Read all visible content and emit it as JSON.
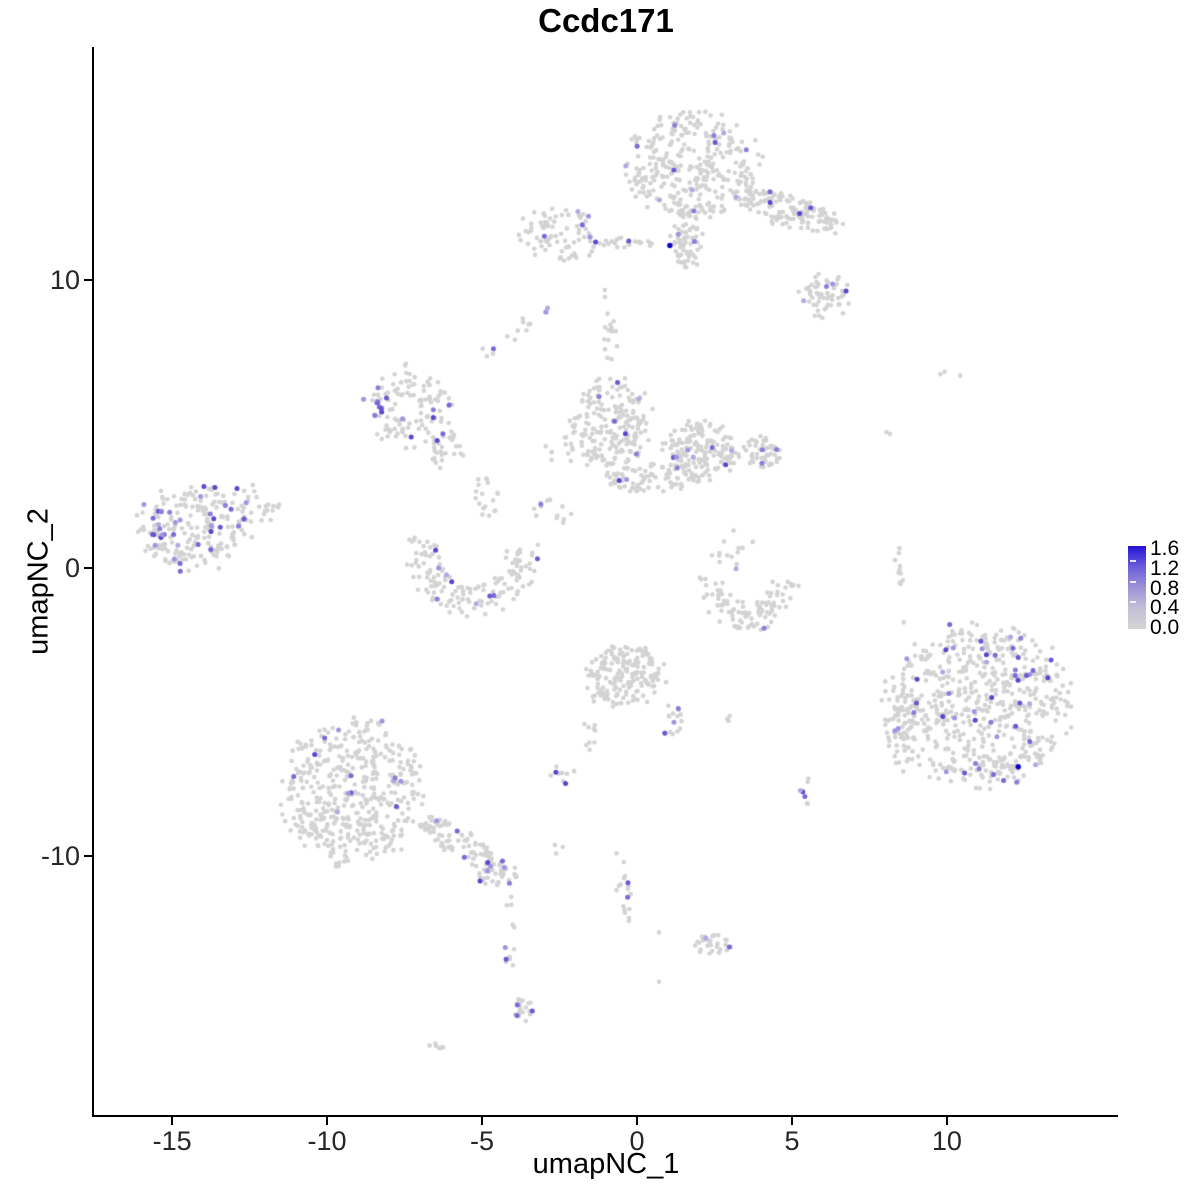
{
  "title": "Ccdc171",
  "axes": {
    "x": {
      "label": "umapNC_1",
      "ticks": [
        -15,
        -10,
        -5,
        0,
        5,
        10
      ],
      "range": [
        -17.52,
        15.52
      ]
    },
    "y": {
      "label": "umapNC_2",
      "ticks": [
        -10,
        0,
        10
      ],
      "range": [
        -19.06,
        18.06
      ]
    }
  },
  "legend": {
    "labels": [
      "1.6",
      "1.2",
      "0.8",
      "0.4",
      "0.0"
    ],
    "values": [
      1.6,
      1.2,
      0.8,
      0.4,
      0.0
    ],
    "max_value": 1.6,
    "tick_values": [
      1.2,
      0.8,
      0.4
    ],
    "gradient_stops": [
      "#2414d6",
      "#6c5cda",
      "#9c94d6",
      "#c4bfd6",
      "#d3d3d3"
    ]
  },
  "colors": {
    "base_point": "#d3d3d3",
    "expressing_palette": [
      "#a294e0",
      "#8f7cda",
      "#7d66d6",
      "#6f55d3",
      "#b2a8e4",
      "#5d44cf"
    ],
    "max_point": "#0c04c6",
    "axis": "#000000",
    "tick_text": "#262626"
  },
  "chart_data": {
    "type": "scatter",
    "title": "Ccdc171",
    "xlabel": "umapNC_1",
    "ylabel": "umapNC_2",
    "xlim": [
      -17.52,
      15.52
    ],
    "ylim": [
      -19.06,
      18.06
    ],
    "legend_position": "right",
    "grid": false,
    "point_radius_px": {
      "base": 2.3,
      "expressing": 2.5,
      "max": 2.7
    },
    "seed": 7,
    "clusters": [
      {
        "shape": "blob",
        "x": 1.87,
        "y": 14.0,
        "hw": 2.1,
        "hh": 1.8,
        "rot": 0,
        "n": 330,
        "purple": 12
      },
      {
        "shape": "blob",
        "x": 1.6,
        "y": 11.4,
        "hw": 0.5,
        "hh": 1.1,
        "rot": 0,
        "n": 70,
        "purple": 2
      },
      {
        "shape": "blob",
        "x": 4.9,
        "y": 12.4,
        "hw": 1.8,
        "hh": 0.55,
        "rot": -18,
        "n": 140,
        "purple": 4
      },
      {
        "shape": "blob",
        "x": 6.1,
        "y": 9.4,
        "hw": 0.85,
        "hh": 0.75,
        "rot": 0,
        "n": 55,
        "purple": 4
      },
      {
        "shape": "blob",
        "x": -0.3,
        "y": 11.3,
        "hw": 1.1,
        "hh": 0.2,
        "rot": 0,
        "n": 22,
        "purple": 1
      },
      {
        "shape": "blob",
        "x": -2.5,
        "y": 11.6,
        "hw": 1.3,
        "hh": 0.95,
        "rot": 0,
        "n": 85,
        "purple": 6
      },
      {
        "shape": "blob",
        "x": -2.95,
        "y": 9.0,
        "hw": 0.18,
        "hh": 0.12,
        "rot": 0,
        "n": 3,
        "purple": 2
      },
      {
        "shape": "blob",
        "x": -4.85,
        "y": 7.5,
        "hw": 0.25,
        "hh": 0.2,
        "rot": 0,
        "n": 4,
        "purple": 1
      },
      {
        "shape": "blob",
        "x": -3.9,
        "y": 8.4,
        "hw": 0.5,
        "hh": 0.5,
        "rot": 0,
        "n": 8,
        "purple": 0
      },
      {
        "shape": "arc",
        "x": -7.4,
        "y": 5.6,
        "r": 0.95,
        "t": 0.55,
        "a0": 0,
        "a1": 360,
        "n": 115,
        "purple": 8
      },
      {
        "shape": "blob",
        "x": -8.2,
        "y": 5.8,
        "hw": 0.25,
        "hh": 0.7,
        "rot": 0,
        "n": 10,
        "purple": 8
      },
      {
        "shape": "blob",
        "x": -6.1,
        "y": 3.9,
        "hw": 0.6,
        "hh": 0.8,
        "rot": 0,
        "n": 30,
        "purple": 2
      },
      {
        "shape": "blob",
        "x": -4.9,
        "y": 2.5,
        "hw": 0.5,
        "hh": 0.7,
        "rot": 0,
        "n": 18,
        "purple": 0
      },
      {
        "shape": "blob",
        "x": -0.8,
        "y": 5.0,
        "hw": 1.25,
        "hh": 1.6,
        "rot": 0,
        "n": 200,
        "purple": 6
      },
      {
        "shape": "blob",
        "x": 2.1,
        "y": 4.1,
        "hw": 1.2,
        "hh": 1.05,
        "rot": 0,
        "n": 170,
        "purple": 8
      },
      {
        "shape": "blob",
        "x": 0.4,
        "y": 3.1,
        "hw": 1.5,
        "hh": 0.5,
        "rot": 0,
        "n": 70,
        "purple": 2
      },
      {
        "shape": "blob",
        "x": 4.0,
        "y": 4.0,
        "hw": 0.7,
        "hh": 0.6,
        "rot": 0,
        "n": 55,
        "purple": 3
      },
      {
        "shape": "arc",
        "x": -5.3,
        "y": 0.45,
        "r": 1.6,
        "t": 0.55,
        "a0": 160,
        "a1": 370,
        "n": 150,
        "purple": 9
      },
      {
        "shape": "blob",
        "x": -14.3,
        "y": 1.4,
        "hw": 1.8,
        "hh": 1.45,
        "rot": 0,
        "n": 210,
        "purple": 24
      },
      {
        "shape": "blob",
        "x": -15.2,
        "y": 1.15,
        "hw": 0.5,
        "hh": 0.8,
        "rot": 0,
        "n": 12,
        "purple": 10
      },
      {
        "shape": "blob",
        "x": -12.3,
        "y": 2.2,
        "hw": 0.8,
        "hh": 0.8,
        "rot": 0,
        "n": 28,
        "purple": 2
      },
      {
        "shape": "arc",
        "x": 3.6,
        "y": -0.55,
        "r": 1.15,
        "t": 0.5,
        "a0": 170,
        "a1": 370,
        "n": 100,
        "purple": 1
      },
      {
        "shape": "blob",
        "x": 3.1,
        "y": 0.7,
        "hw": 0.8,
        "hh": 0.8,
        "rot": 0,
        "n": 14,
        "purple": 1
      },
      {
        "shape": "blob",
        "x": 8.45,
        "y": 0.1,
        "hw": 0.15,
        "hh": 0.85,
        "rot": 0,
        "n": 13,
        "purple": 0
      },
      {
        "shape": "blob",
        "x": 8.6,
        "y": -1.9,
        "hw": 0.05,
        "hh": 0.05,
        "rot": 0,
        "n": 1,
        "purple": 0
      },
      {
        "shape": "blob",
        "x": 10.2,
        "y": 6.75,
        "hw": 0.45,
        "hh": 0.12,
        "rot": 0,
        "n": 3,
        "purple": 0
      },
      {
        "shape": "blob",
        "x": 8.25,
        "y": 4.7,
        "hw": 0.25,
        "hh": 0.3,
        "rot": 0,
        "n": 2,
        "purple": 0
      },
      {
        "shape": "blob",
        "x": 11.0,
        "y": -4.8,
        "hw": 2.95,
        "hh": 2.75,
        "rot": 0,
        "n": 620,
        "purple": 44
      },
      {
        "shape": "blob",
        "x": 8.6,
        "y": -5.7,
        "hw": 0.55,
        "hh": 1.4,
        "rot": 0,
        "n": 45,
        "purple": 3
      },
      {
        "shape": "blob",
        "x": -9.2,
        "y": -7.8,
        "hw": 2.2,
        "hh": 2.5,
        "rot": 0,
        "n": 470,
        "purple": 13
      },
      {
        "shape": "blob",
        "x": -5.6,
        "y": -9.65,
        "hw": 1.6,
        "hh": 0.5,
        "rot": -34,
        "n": 85,
        "purple": 3
      },
      {
        "shape": "blob",
        "x": -4.5,
        "y": -10.6,
        "hw": 0.65,
        "hh": 0.5,
        "rot": 0,
        "n": 40,
        "purple": 7
      },
      {
        "shape": "blob",
        "x": -0.4,
        "y": -3.75,
        "hw": 1.25,
        "hh": 1.15,
        "rot": 0,
        "n": 180,
        "purple": 0
      },
      {
        "shape": "blob",
        "x": 1.1,
        "y": -5.3,
        "hw": 0.35,
        "hh": 0.6,
        "rot": 0,
        "n": 16,
        "purple": 3
      },
      {
        "shape": "blob",
        "x": -1.5,
        "y": -5.7,
        "hw": 0.2,
        "hh": 0.6,
        "rot": 0,
        "n": 9,
        "purple": 0
      },
      {
        "shape": "blob",
        "x": -2.3,
        "y": -7.2,
        "hw": 0.5,
        "hh": 0.35,
        "rot": 0,
        "n": 10,
        "purple": 2
      },
      {
        "shape": "blob",
        "x": 5.45,
        "y": -7.55,
        "hw": 0.2,
        "hh": 0.45,
        "rot": 0,
        "n": 5,
        "purple": 3
      },
      {
        "shape": "blob",
        "x": 3.1,
        "y": -5.2,
        "hw": 0.3,
        "hh": 0.12,
        "rot": 0,
        "n": 3,
        "purple": 0
      },
      {
        "shape": "blob",
        "x": -0.5,
        "y": -11.1,
        "hw": 0.3,
        "hh": 1.3,
        "rot": 10,
        "n": 18,
        "purple": 2
      },
      {
        "shape": "blob",
        "x": 2.5,
        "y": -13.05,
        "hw": 0.65,
        "hh": 0.35,
        "rot": 0,
        "n": 30,
        "purple": 2
      },
      {
        "shape": "blob",
        "x": -4.1,
        "y": -12.75,
        "hw": 0.18,
        "hh": 1.4,
        "rot": 0,
        "n": 13,
        "purple": 2
      },
      {
        "shape": "blob",
        "x": -3.65,
        "y": -15.3,
        "hw": 0.4,
        "hh": 0.4,
        "rot": 0,
        "n": 22,
        "purple": 3
      },
      {
        "shape": "blob",
        "x": -6.4,
        "y": -16.6,
        "hw": 0.3,
        "hh": 0.15,
        "rot": 0,
        "n": 7,
        "purple": 0
      },
      {
        "shape": "blob",
        "x": -0.9,
        "y": 8.3,
        "hw": 0.28,
        "hh": 1.55,
        "rot": 0,
        "n": 16,
        "purple": 0
      },
      {
        "shape": "blob",
        "x": -2.6,
        "y": 2.0,
        "hw": 0.75,
        "hh": 0.5,
        "rot": 0,
        "n": 14,
        "purple": 1
      },
      {
        "shape": "blob",
        "x": -2.5,
        "y": 4.1,
        "hw": 0.65,
        "hh": 0.55,
        "rot": 0,
        "n": 12,
        "purple": 0
      },
      {
        "shape": "blob",
        "x": 0.7,
        "y": -12.6,
        "hw": 0.05,
        "hh": 0.05,
        "rot": 0,
        "n": 1,
        "purple": 0
      },
      {
        "shape": "blob",
        "x": 0.7,
        "y": -14.4,
        "hw": 0.05,
        "hh": 0.05,
        "rot": 0,
        "n": 1,
        "purple": 0
      },
      {
        "shape": "blob",
        "x": -2.55,
        "y": -9.6,
        "hw": 0.2,
        "hh": 0.4,
        "rot": 0,
        "n": 3,
        "purple": 0
      },
      {
        "shape": "blob",
        "x": 5.5,
        "y": -8.15,
        "hw": 0.15,
        "hh": 0.2,
        "rot": 0,
        "n": 2,
        "purple": 0
      }
    ],
    "max_expression_points": [
      {
        "x": 1.06,
        "y": 11.2,
        "value": 1.6
      },
      {
        "x": 12.3,
        "y": -6.9,
        "value": 1.6
      }
    ]
  }
}
